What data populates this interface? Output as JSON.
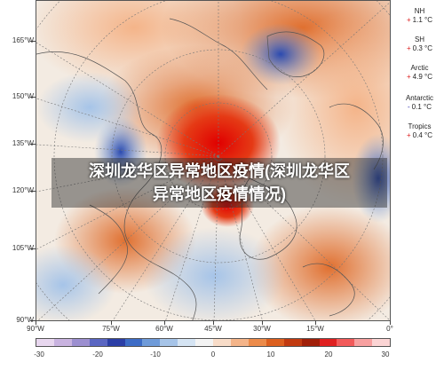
{
  "map": {
    "latitude_labels": [
      "165°W",
      "150°W",
      "135°W",
      "120°W",
      "105°W",
      "90°W"
    ],
    "longitude_labels": [
      "90°W",
      "75°W",
      "60°W",
      "45°W",
      "30°W",
      "15°W",
      "0°"
    ]
  },
  "stats": [
    {
      "name": "NH",
      "sign": "+",
      "value": "1.1 °C",
      "color": "#dd2222"
    },
    {
      "name": "SH",
      "sign": "+",
      "value": "0.3 °C",
      "color": "#dd2222"
    },
    {
      "name": "Arctic",
      "sign": "+",
      "value": "4.9 °C",
      "color": "#dd2222"
    },
    {
      "name": "Antarctic",
      "sign": "-",
      "value": "0.1 °C",
      "color": "#2222aa"
    },
    {
      "name": "Tropics",
      "sign": "+",
      "value": "0.4 °C",
      "color": "#dd2222"
    }
  ],
  "colorbar": {
    "tick_labels": [
      "-30",
      "-20",
      "-10",
      "0",
      "10",
      "20",
      "30"
    ],
    "colors": [
      "#e8d7ef",
      "#c9b3e0",
      "#9c8fd0",
      "#5a66c2",
      "#2b3ea6",
      "#3d6cc6",
      "#6f9bd9",
      "#a6c4e8",
      "#d5e4f3",
      "#f3f3f3",
      "#f8dcc8",
      "#f4b489",
      "#ec8b4a",
      "#dc5f1f",
      "#c13a10",
      "#a01f08",
      "#e02020",
      "#f25a5a",
      "#f7a0a0",
      "#fbd4d4"
    ]
  },
  "overlay": {
    "line1": "深圳龙华区异常地区疫情(深圳龙华区",
    "line2": "异常地区疫情情况)"
  }
}
